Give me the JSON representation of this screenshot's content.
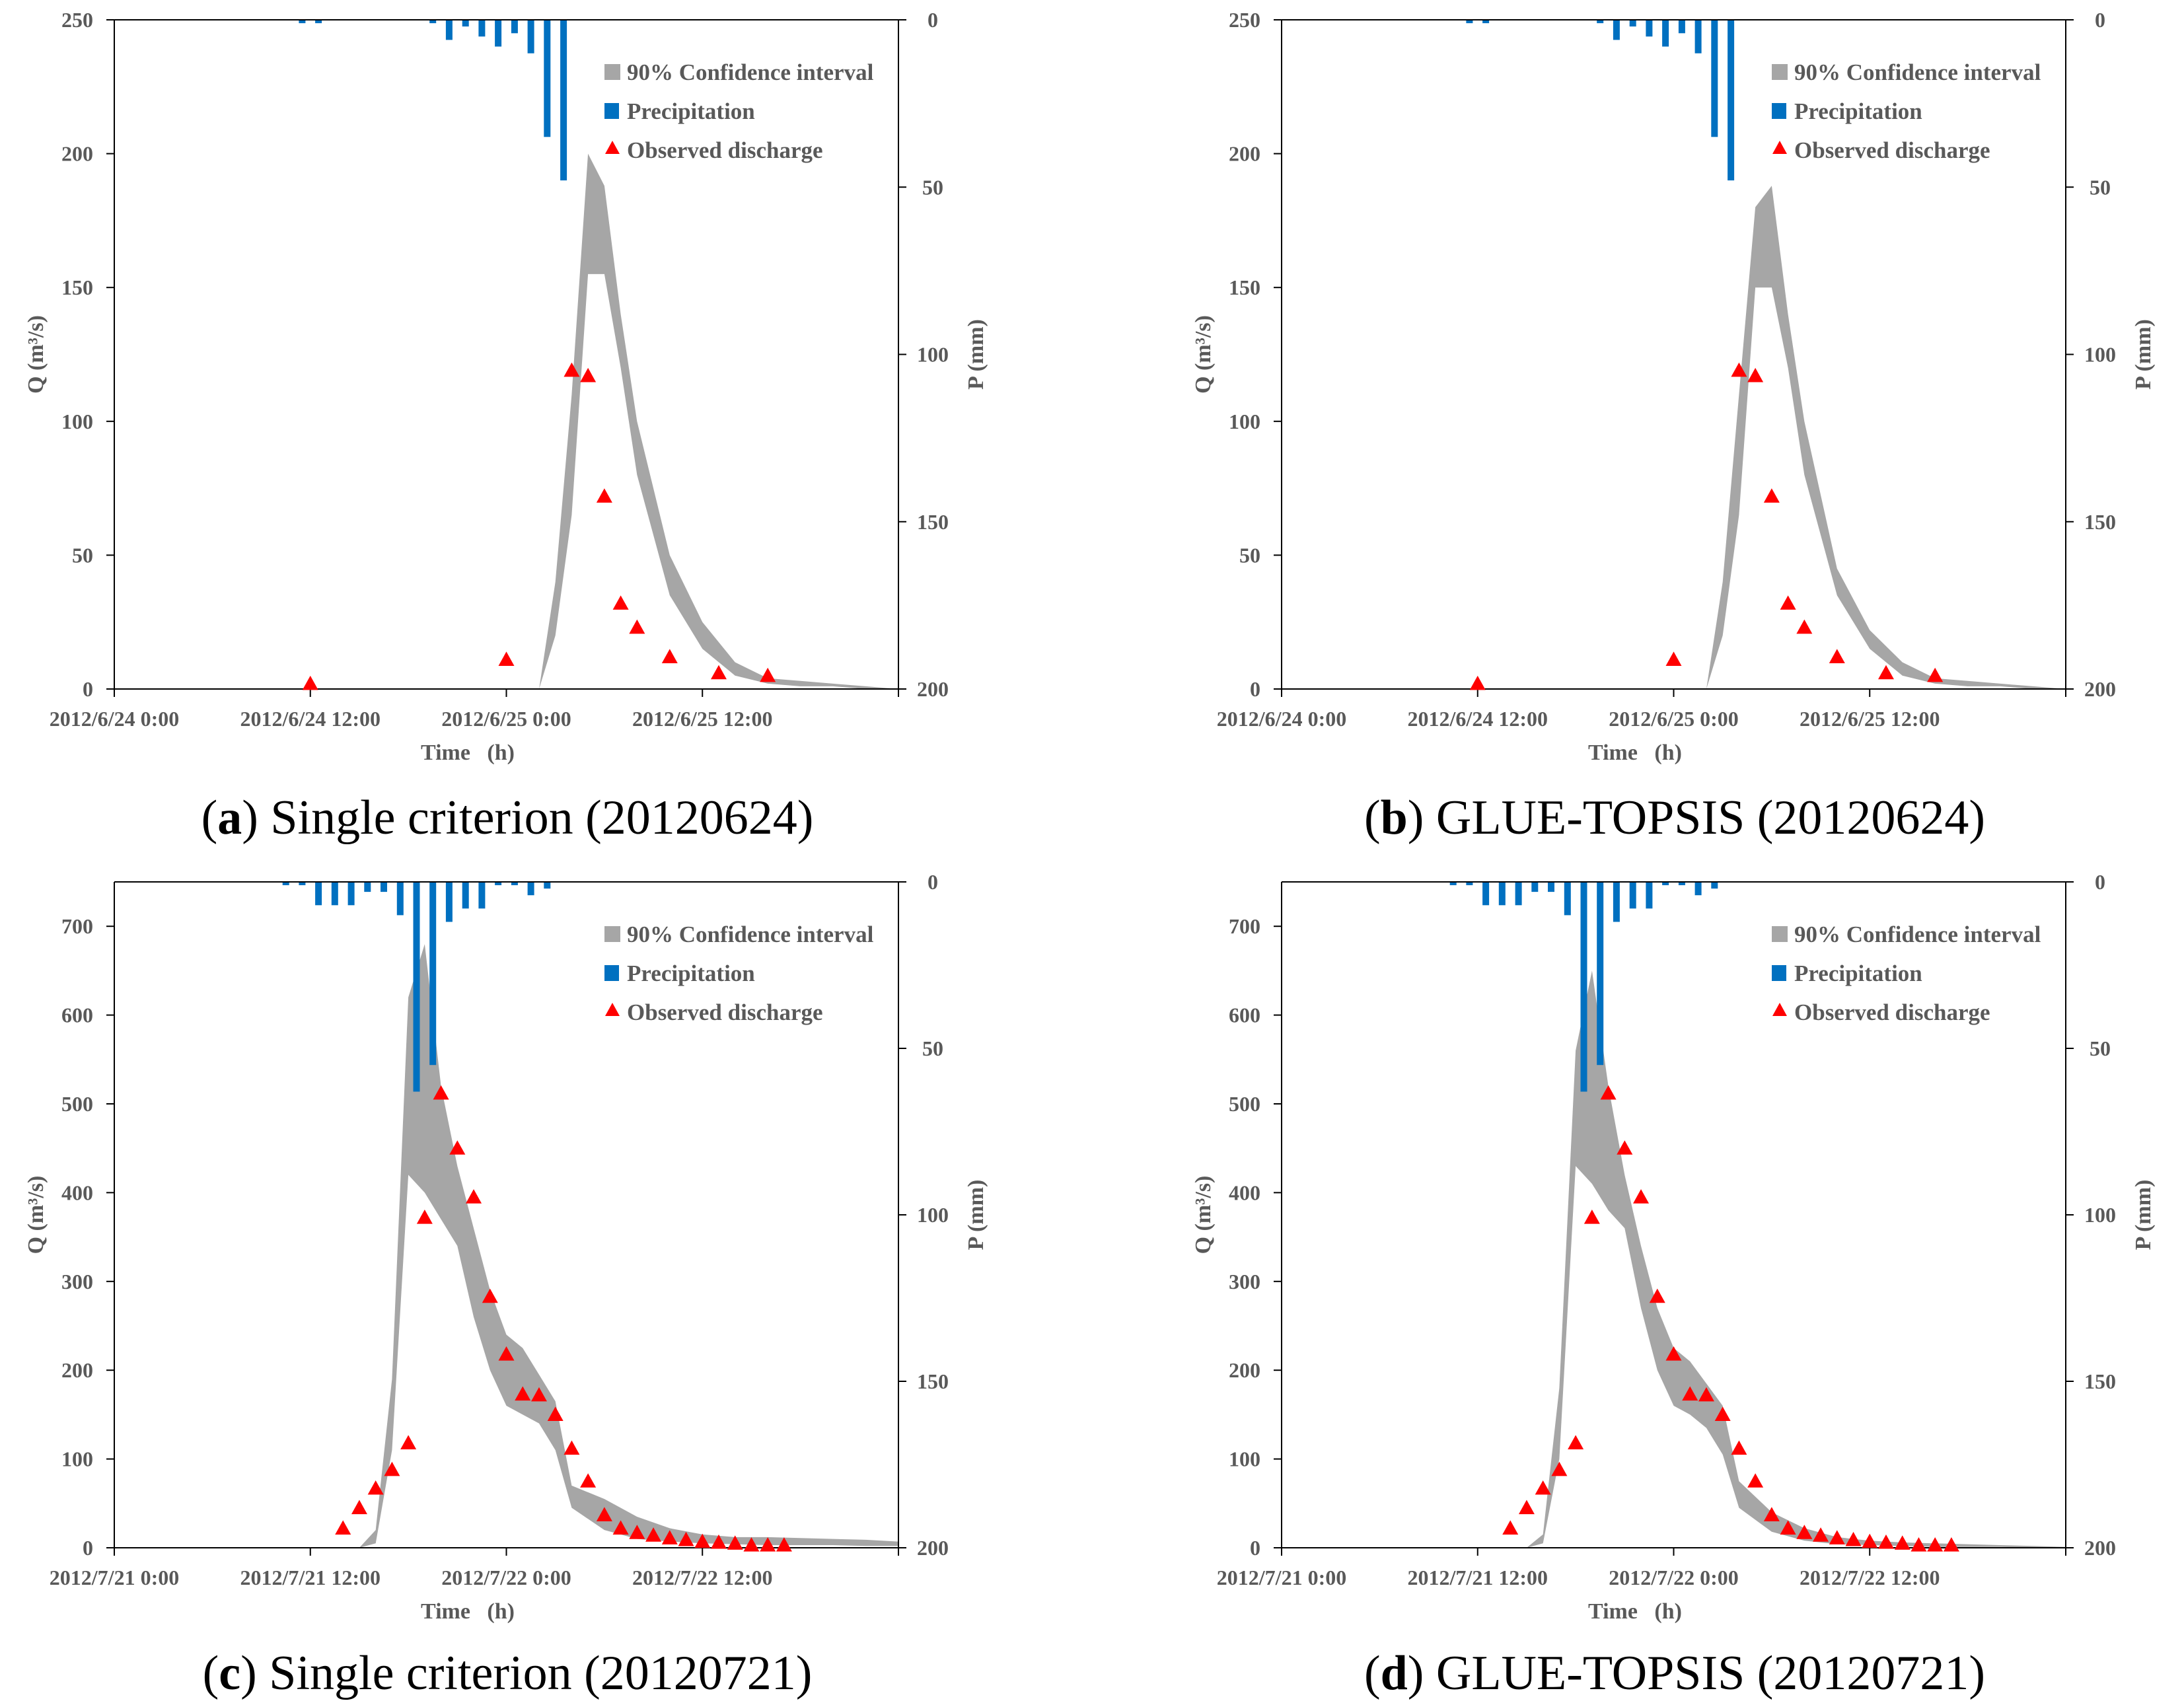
{
  "colors": {
    "band": "#a6a6a6",
    "precipitation": "#0070c0",
    "observed": "#ff0000",
    "axis": "#000000",
    "text": "#595959"
  },
  "chart_data": [
    {
      "type": "area",
      "caption": {
        "letter": "a",
        "open": "(",
        "rest": ") Single criterion (20120624)"
      },
      "xlabel": "Time   (h)",
      "ylabel": "Q (m³/s)",
      "y2label": "P (mm)",
      "x_ticks": [
        "2012/6/24 0:00",
        "2012/6/24 12:00",
        "2012/6/25 0:00",
        "2012/6/25 12:00"
      ],
      "x_range_hours": [
        0,
        48
      ],
      "ylim": [
        0,
        250
      ],
      "y_ticks": [
        0,
        50,
        100,
        150,
        200,
        250
      ],
      "y2lim": [
        0,
        200
      ],
      "y2_ticks": [
        0,
        50,
        100,
        150,
        200
      ],
      "legend": [
        "90% Confidence interval",
        "Precipitation",
        "Observed discharge"
      ],
      "precipitation": {
        "hours": [
          11,
          12,
          19,
          20,
          21,
          22,
          23,
          24,
          25,
          26,
          27
        ],
        "values": [
          1,
          1,
          1,
          6,
          2,
          5,
          8,
          4,
          10,
          35,
          48
        ]
      },
      "band": {
        "hours": [
          26,
          27,
          28,
          29,
          30,
          31,
          32,
          34,
          36,
          38,
          40,
          42,
          44,
          46,
          48
        ],
        "upper": [
          0,
          40,
          110,
          200,
          188,
          140,
          100,
          50,
          25,
          10,
          4,
          3,
          2,
          1,
          0
        ],
        "lower": [
          0,
          20,
          65,
          155,
          155,
          120,
          80,
          35,
          15,
          5,
          2,
          1,
          1,
          0,
          0
        ]
      },
      "observed": {
        "hours": [
          12,
          24,
          28,
          29,
          30,
          31,
          32,
          34,
          37,
          40
        ],
        "values": [
          2,
          11,
          119,
          117,
          72,
          32,
          23,
          12,
          6,
          5
        ]
      }
    },
    {
      "type": "area",
      "caption": {
        "letter": "b",
        "open": "(",
        "rest": ") GLUE-TOPSIS (20120624)"
      },
      "xlabel": "Time   (h)",
      "ylabel": "Q (m³/s)",
      "y2label": "P (mm)",
      "x_ticks": [
        "2012/6/24 0:00",
        "2012/6/24 12:00",
        "2012/6/25 0:00",
        "2012/6/25 12:00"
      ],
      "x_range_hours": [
        0,
        48
      ],
      "ylim": [
        0,
        250
      ],
      "y_ticks": [
        0,
        50,
        100,
        150,
        200,
        250
      ],
      "y2lim": [
        0,
        200
      ],
      "y2_ticks": [
        0,
        50,
        100,
        150,
        200
      ],
      "legend": [
        "90% Confidence interval",
        "Precipitation",
        "Observed discharge"
      ],
      "precipitation": {
        "hours": [
          11,
          12,
          19,
          20,
          21,
          22,
          23,
          24,
          25,
          26,
          27
        ],
        "values": [
          1,
          1,
          1,
          6,
          2,
          5,
          8,
          4,
          10,
          35,
          48
        ]
      },
      "band": {
        "hours": [
          26,
          27,
          28,
          29,
          30,
          31,
          32,
          34,
          36,
          38,
          40,
          42,
          44,
          46,
          48
        ],
        "upper": [
          0,
          40,
          110,
          180,
          188,
          140,
          100,
          45,
          22,
          10,
          4,
          3,
          2,
          1,
          0
        ],
        "lower": [
          0,
          20,
          65,
          150,
          150,
          120,
          80,
          35,
          15,
          5,
          2,
          1,
          1,
          0,
          0
        ]
      },
      "observed": {
        "hours": [
          12,
          24,
          28,
          29,
          30,
          31,
          32,
          34,
          37,
          40
        ],
        "values": [
          2,
          11,
          119,
          117,
          72,
          32,
          23,
          12,
          6,
          5
        ]
      }
    },
    {
      "type": "area",
      "caption": {
        "letter": "c",
        "open": "(",
        "rest": ") Single criterion (20120721)"
      },
      "xlabel": "Time   (h)",
      "ylabel": "Q (m³/s)",
      "y2label": "P (mm)",
      "x_ticks": [
        "2012/7/21 0:00",
        "2012/7/21 12:00",
        "2012/7/22 0:00",
        "2012/7/22 12:00"
      ],
      "x_range_hours": [
        0,
        48
      ],
      "ylim": [
        0,
        750
      ],
      "y_ticks": [
        0,
        100,
        200,
        300,
        400,
        500,
        600,
        700
      ],
      "y2lim": [
        0,
        200
      ],
      "y2_ticks": [
        0,
        50,
        100,
        150,
        200
      ],
      "legend": [
        "90% Confidence interval",
        "Precipitation",
        "Observed discharge"
      ],
      "precipitation": {
        "hours": [
          10,
          11,
          12,
          13,
          14,
          15,
          16,
          17,
          18,
          19,
          20,
          21,
          22,
          23,
          24,
          25,
          26
        ],
        "values": [
          1,
          1,
          7,
          7,
          7,
          3,
          3,
          10,
          63,
          55,
          12,
          8,
          8,
          1,
          1,
          4,
          2
        ]
      },
      "band": {
        "hours": [
          15,
          16,
          17,
          18,
          19,
          20,
          21,
          22,
          23,
          24,
          25,
          26,
          27,
          28,
          30,
          32,
          34,
          36,
          38,
          40,
          42,
          44,
          46,
          48
        ],
        "upper": [
          0,
          20,
          190,
          620,
          680,
          520,
          430,
          360,
          290,
          240,
          225,
          195,
          165,
          70,
          55,
          35,
          22,
          15,
          12,
          12,
          11,
          10,
          9,
          7
        ],
        "lower": [
          0,
          5,
          110,
          420,
          400,
          370,
          340,
          260,
          200,
          160,
          150,
          140,
          110,
          45,
          20,
          10,
          7,
          5,
          4,
          3,
          3,
          3,
          2,
          2
        ]
      },
      "observed": {
        "hours": [
          14,
          15,
          16,
          17,
          18,
          19,
          20,
          21,
          22,
          23,
          24,
          25,
          26,
          27,
          28,
          29,
          30,
          31,
          32,
          33,
          34,
          35,
          36,
          37,
          38,
          39,
          40,
          41
        ],
        "values": [
          22,
          45,
          67,
          88,
          118,
          372,
          512,
          450,
          395,
          283,
          218,
          173,
          172,
          150,
          112,
          75,
          37,
          22,
          17,
          14,
          11,
          9,
          7,
          6,
          5,
          3,
          3,
          3
        ]
      }
    },
    {
      "type": "area",
      "caption": {
        "letter": "d",
        "open": "(",
        "rest": ") GLUE-TOPSIS (20120721)"
      },
      "xlabel": "Time   (h)",
      "ylabel": "Q (m³/s)",
      "y2label": "P (mm)",
      "x_ticks": [
        "2012/7/21 0:00",
        "2012/7/21 12:00",
        "2012/7/22 0:00",
        "2012/7/22 12:00"
      ],
      "x_range_hours": [
        0,
        48
      ],
      "ylim": [
        0,
        750
      ],
      "y_ticks": [
        0,
        100,
        200,
        300,
        400,
        500,
        600,
        700
      ],
      "y2lim": [
        0,
        200
      ],
      "y2_ticks": [
        0,
        50,
        100,
        150,
        200
      ],
      "legend": [
        "90% Confidence interval",
        "Precipitation",
        "Observed discharge"
      ],
      "precipitation": {
        "hours": [
          10,
          11,
          12,
          13,
          14,
          15,
          16,
          17,
          18,
          19,
          20,
          21,
          22,
          23,
          24,
          25,
          26
        ],
        "values": [
          1,
          1,
          7,
          7,
          7,
          3,
          3,
          10,
          63,
          55,
          12,
          8,
          8,
          1,
          1,
          4,
          2
        ]
      },
      "band": {
        "hours": [
          15,
          16,
          17,
          18,
          19,
          20,
          21,
          22,
          23,
          24,
          25,
          26,
          27,
          28,
          30,
          32,
          34,
          36,
          38,
          40,
          42,
          44,
          46,
          48
        ],
        "upper": [
          0,
          15,
          180,
          560,
          650,
          520,
          420,
          340,
          270,
          225,
          210,
          185,
          160,
          75,
          40,
          22,
          12,
          8,
          6,
          5,
          4,
          3,
          2,
          1
        ],
        "lower": [
          0,
          5,
          100,
          430,
          410,
          380,
          360,
          270,
          200,
          160,
          150,
          135,
          105,
          45,
          18,
          8,
          4,
          3,
          2,
          1,
          1,
          1,
          0,
          0
        ]
      },
      "observed": {
        "hours": [
          14,
          15,
          16,
          17,
          18,
          19,
          20,
          21,
          22,
          23,
          24,
          25,
          26,
          27,
          28,
          29,
          30,
          31,
          32,
          33,
          34,
          35,
          36,
          37,
          38,
          39,
          40,
          41
        ],
        "values": [
          22,
          45,
          67,
          88,
          118,
          372,
          512,
          450,
          395,
          283,
          218,
          173,
          172,
          150,
          112,
          75,
          37,
          22,
          17,
          14,
          11,
          9,
          7,
          6,
          5,
          3,
          3,
          3
        ]
      }
    }
  ]
}
